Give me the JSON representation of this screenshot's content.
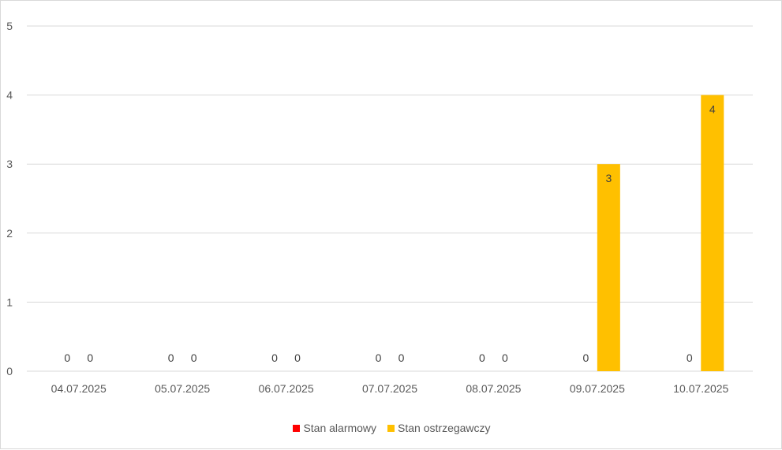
{
  "chart_data": {
    "type": "bar",
    "categories": [
      "04.07.2025",
      "05.07.2025",
      "06.07.2025",
      "07.07.2025",
      "08.07.2025",
      "09.07.2025",
      "10.07.2025"
    ],
    "series": [
      {
        "name": "Stan alarmowy",
        "color": "#ff0000",
        "values": [
          0,
          0,
          0,
          0,
          0,
          0,
          0
        ]
      },
      {
        "name": "Stan ostrzegawczy",
        "color": "#ffc000",
        "values": [
          0,
          0,
          0,
          0,
          0,
          3,
          4
        ]
      }
    ],
    "ylim": [
      0,
      5
    ],
    "yticks": [
      "0",
      "1",
      "2",
      "3",
      "4",
      "5"
    ],
    "grid": true,
    "legend_position": "bottom",
    "data_labels": true
  }
}
